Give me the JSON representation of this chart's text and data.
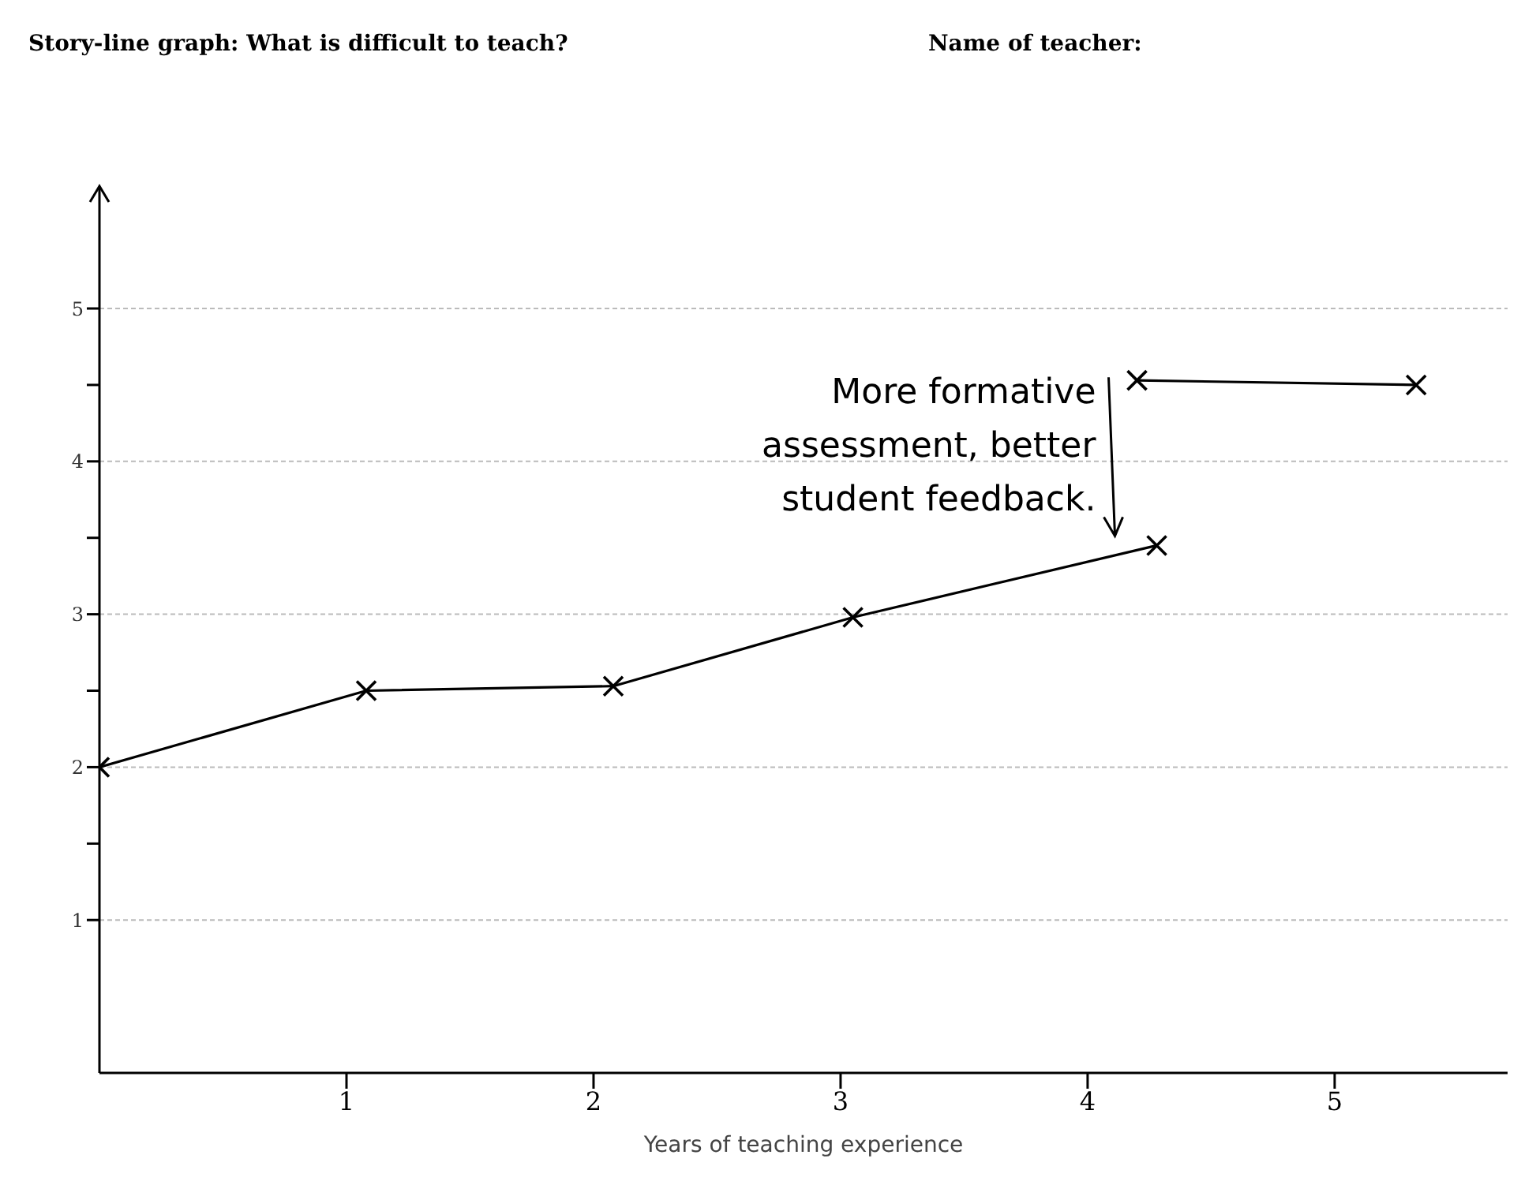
{
  "chart_data": {
    "type": "line",
    "title": "Story-line graph: What is difficult to teach?",
    "subtitle": "Name of teacher:",
    "xlabel": "Years of teaching experience",
    "xlim": [
      0,
      5.7
    ],
    "xticks": [
      1,
      2,
      3,
      4,
      5
    ],
    "ylim": [
      0,
      5.8
    ],
    "yticks": [
      1,
      {
        "value": 1.5,
        "label": null
      },
      2,
      {
        "value": 2.5,
        "label": null
      },
      3,
      {
        "value": 3.5,
        "label": null
      },
      4,
      {
        "value": 4.5,
        "label": null
      },
      5
    ],
    "grid": "y",
    "marker": "cross",
    "line_style": "solid",
    "series": [
      {
        "color": "#000000",
        "x": [
          0,
          1.08,
          2.08,
          3.05,
          4.28
        ],
        "values": [
          2,
          2.5,
          2.53,
          2.98,
          3.45
        ]
      },
      {
        "color": "#000000",
        "x": [
          4.2,
          5.33
        ],
        "values": [
          4.53,
          4.5
        ]
      }
    ],
    "annotations": [
      {
        "text": "More formative assessment, better student feedback.",
        "x": 4.2,
        "y": 3.45
      }
    ]
  }
}
